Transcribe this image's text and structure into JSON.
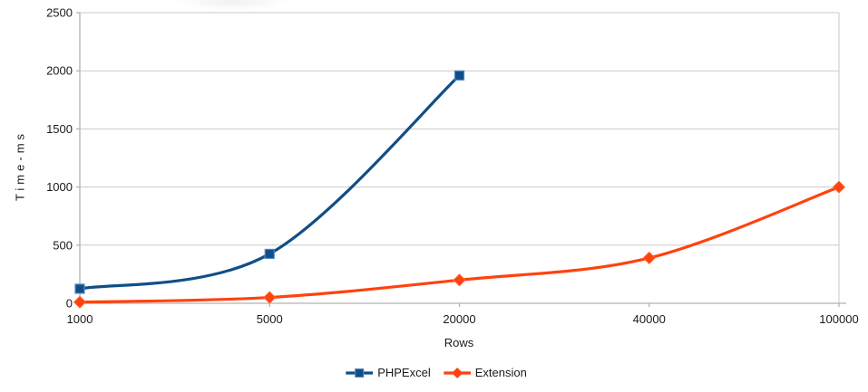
{
  "chart_data": {
    "type": "line",
    "title": "",
    "xlabel": "Rows",
    "ylabel": "Time-ms",
    "categories": [
      "1000",
      "5000",
      "20000",
      "40000",
      "100000"
    ],
    "series": [
      {
        "name": "PHPExcel",
        "color": "#114E87",
        "marker": "square",
        "marker_edge": "#4E87C6",
        "values": [
          125,
          425,
          1960,
          null,
          null
        ]
      },
      {
        "name": "Extension",
        "color": "#FF420E",
        "marker": "diamond",
        "marker_edge": "#FF6A3C",
        "values": [
          10,
          50,
          200,
          390,
          1000
        ]
      }
    ],
    "ylim": [
      0,
      2500
    ],
    "ytick_step": 500,
    "yticks": [
      "0",
      "500",
      "1000",
      "1500",
      "2000",
      "2500"
    ],
    "grid": "horizontal",
    "legend_position": "bottom",
    "grid_color": "#C9C9C9",
    "axis_color": "#B2B2B2",
    "text_color": "#1A1A1A",
    "background_color": "#FFFFFF"
  }
}
